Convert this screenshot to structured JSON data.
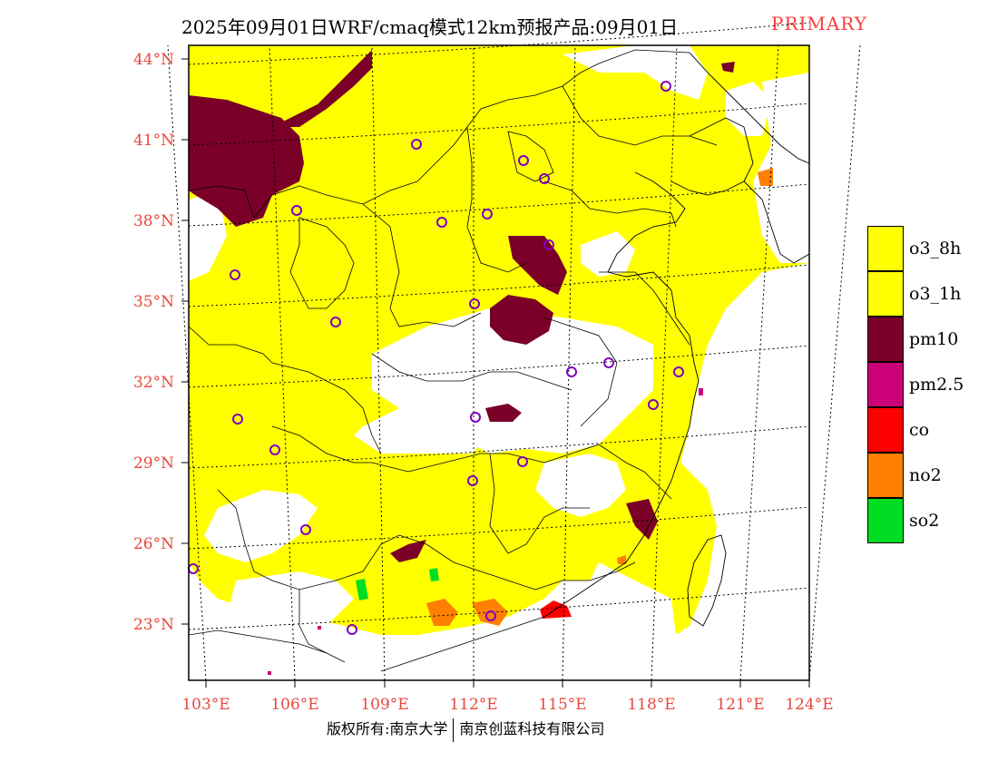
{
  "title": {
    "main": "2025年09月01日WRF/cmaq模式12km预报产品:09月01日",
    "tag": "PRIMARY"
  },
  "axes": {
    "lat_labels": [
      "44°N",
      "41°N",
      "38°N",
      "35°N",
      "32°N",
      "29°N",
      "26°N",
      "23°N"
    ],
    "lon_labels": [
      "103°E",
      "106°E",
      "109°E",
      "112°E",
      "115°E",
      "118°E",
      "121°E",
      "124°E"
    ],
    "label_color": "#e8473c"
  },
  "legend": [
    {
      "label": "o3_8h",
      "color": "#ffff00"
    },
    {
      "label": "o3_1h",
      "color": "#ffff00"
    },
    {
      "label": "pm10",
      "color": "#7b0028"
    },
    {
      "label": "pm2.5",
      "color": "#cc0077"
    },
    {
      "label": "co",
      "color": "#ff0000"
    },
    {
      "label": "no2",
      "color": "#ff7f00"
    },
    {
      "label": "so2",
      "color": "#00dd22"
    }
  ],
  "footer": {
    "left": "版权所有:南京大学",
    "right": "南京创蓝科技有限公司"
  },
  "station_marker_color": "#8000c0"
}
